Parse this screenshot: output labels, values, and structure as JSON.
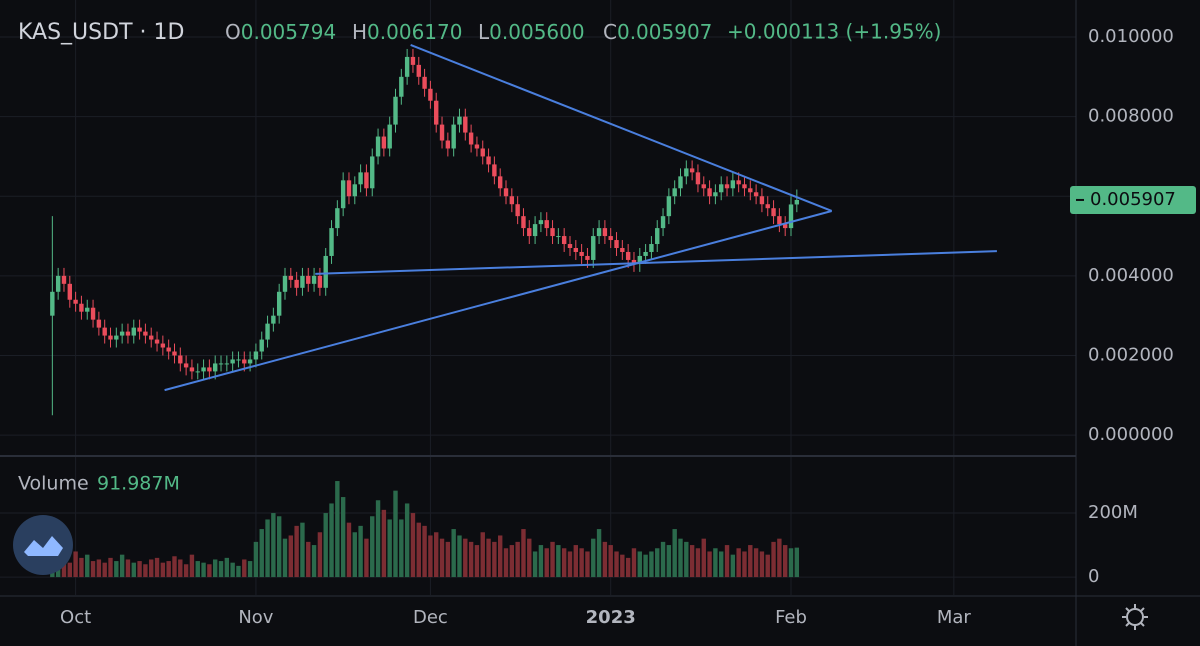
{
  "chart_data": {
    "type": "candlestick",
    "title": "KAS_USDT · 1D",
    "ohlc_header": [
      {
        "key": "O",
        "value": "0.005794"
      },
      {
        "key": "H",
        "value": "0.006170"
      },
      {
        "key": "L",
        "value": "0.005600"
      },
      {
        "key": "C",
        "value": "0.005907"
      }
    ],
    "change": "+0.000113 (+1.95%)",
    "last_price_label": "0.005907",
    "up_color": "#53b987",
    "down_color": "#eb4d5c",
    "trendline_color": "#4a7fde",
    "xlim": [
      -9,
      176
    ],
    "xticks": [
      {
        "value": 4,
        "label": "Oct"
      },
      {
        "value": 35,
        "label": "Nov"
      },
      {
        "value": 65,
        "label": "Dec"
      },
      {
        "value": 96,
        "label": "2023"
      },
      {
        "value": 127,
        "label": "Feb"
      },
      {
        "value": 155,
        "label": "Mar"
      }
    ],
    "ylim": [
      -0.0005,
      0.01093
    ],
    "yticks": [
      {
        "value": 0,
        "label": "0.000000"
      },
      {
        "value": 0.002,
        "label": "0.002000"
      },
      {
        "value": 0.004,
        "label": "0.004000"
      },
      {
        "value": 0.006,
        "label": "0.006000"
      },
      {
        "value": 0.008,
        "label": "0.008000"
      },
      {
        "value": 0.01,
        "label": "0.010000"
      }
    ],
    "grid": true,
    "open": [
      0.003,
      0.0036,
      0.004,
      0.0038,
      0.0034,
      0.0033,
      0.0031,
      0.0032,
      0.0029,
      0.0027,
      0.0025,
      0.0024,
      0.0025,
      0.0026,
      0.0025,
      0.0027,
      0.0026,
      0.0025,
      0.0024,
      0.0023,
      0.0022,
      0.0021,
      0.002,
      0.0018,
      0.0017,
      0.0016,
      0.0016,
      0.0017,
      0.0016,
      0.0018,
      0.0018,
      0.0018,
      0.0019,
      0.0019,
      0.0018,
      0.0019,
      0.0021,
      0.0024,
      0.0028,
      0.003,
      0.0036,
      0.004,
      0.0039,
      0.0037,
      0.004,
      0.0038,
      0.004,
      0.0037,
      0.0045,
      0.0052,
      0.0057,
      0.0064,
      0.006,
      0.0063,
      0.0066,
      0.0062,
      0.007,
      0.0075,
      0.0072,
      0.0078,
      0.0085,
      0.009,
      0.0095,
      0.0093,
      0.009,
      0.0087,
      0.0084,
      0.0078,
      0.0074,
      0.0072,
      0.0078,
      0.008,
      0.0076,
      0.0073,
      0.0072,
      0.007,
      0.0068,
      0.0065,
      0.0062,
      0.006,
      0.0058,
      0.0055,
      0.0052,
      0.005,
      0.0053,
      0.0054,
      0.0052,
      0.005,
      0.005,
      0.0048,
      0.0047,
      0.0046,
      0.0045,
      0.0044,
      0.005,
      0.0052,
      0.005,
      0.0049,
      0.0047,
      0.0046,
      0.0044,
      0.0043,
      0.0045,
      0.0046,
      0.0048,
      0.0052,
      0.0055,
      0.006,
      0.0062,
      0.0065,
      0.0067,
      0.0066,
      0.0063,
      0.0062,
      0.006,
      0.0061,
      0.0063,
      0.0062,
      0.0064,
      0.0063,
      0.0062,
      0.0061,
      0.006,
      0.0058,
      0.0057,
      0.0055,
      0.0053,
      0.0052,
      0.005794
    ],
    "high": [
      0.0055,
      0.0042,
      0.0042,
      0.004,
      0.0036,
      0.0035,
      0.0034,
      0.0034,
      0.0031,
      0.0029,
      0.0027,
      0.0027,
      0.0028,
      0.0028,
      0.0029,
      0.0029,
      0.0028,
      0.0027,
      0.0026,
      0.0025,
      0.0024,
      0.0023,
      0.0022,
      0.002,
      0.0019,
      0.0018,
      0.0019,
      0.0019,
      0.002,
      0.002,
      0.002,
      0.0021,
      0.0021,
      0.0021,
      0.0021,
      0.0023,
      0.0026,
      0.003,
      0.0032,
      0.0038,
      0.0042,
      0.0042,
      0.0041,
      0.0042,
      0.0042,
      0.0042,
      0.0042,
      0.0047,
      0.0054,
      0.0059,
      0.0066,
      0.0066,
      0.0065,
      0.0068,
      0.0068,
      0.0072,
      0.0077,
      0.0077,
      0.008,
      0.0087,
      0.0092,
      0.0097,
      0.0097,
      0.0095,
      0.0092,
      0.0089,
      0.0086,
      0.008,
      0.0076,
      0.008,
      0.0082,
      0.0082,
      0.0078,
      0.0075,
      0.0074,
      0.0072,
      0.007,
      0.0067,
      0.0064,
      0.0062,
      0.006,
      0.0057,
      0.0054,
      0.0055,
      0.0056,
      0.0056,
      0.0054,
      0.0052,
      0.0052,
      0.005,
      0.0049,
      0.0048,
      0.0047,
      0.0052,
      0.0054,
      0.0054,
      0.0052,
      0.0051,
      0.0049,
      0.0048,
      0.0046,
      0.0047,
      0.0048,
      0.005,
      0.0054,
      0.0057,
      0.0062,
      0.0064,
      0.0067,
      0.0069,
      0.0069,
      0.0068,
      0.0065,
      0.0064,
      0.0063,
      0.0065,
      0.0065,
      0.0066,
      0.0066,
      0.0065,
      0.0064,
      0.0063,
      0.0062,
      0.006,
      0.0059,
      0.0057,
      0.0055,
      0.006,
      0.00617
    ],
    "low": [
      0.0005,
      0.0034,
      0.0036,
      0.0032,
      0.0031,
      0.0029,
      0.0029,
      0.0027,
      0.0025,
      0.0023,
      0.0022,
      0.0022,
      0.0023,
      0.0023,
      0.0023,
      0.0024,
      0.0023,
      0.0022,
      0.0021,
      0.002,
      0.0019,
      0.0018,
      0.0016,
      0.0015,
      0.0014,
      0.0014,
      0.0014,
      0.0014,
      0.0014,
      0.0016,
      0.0016,
      0.0016,
      0.0017,
      0.0016,
      0.0016,
      0.0017,
      0.0019,
      0.0022,
      0.0026,
      0.0028,
      0.0034,
      0.0037,
      0.0035,
      0.0035,
      0.0036,
      0.0036,
      0.0035,
      0.0035,
      0.0043,
      0.005,
      0.0055,
      0.0058,
      0.0058,
      0.0061,
      0.006,
      0.006,
      0.0068,
      0.007,
      0.007,
      0.0076,
      0.0083,
      0.0088,
      0.0091,
      0.0088,
      0.0085,
      0.0082,
      0.0076,
      0.0072,
      0.007,
      0.007,
      0.0076,
      0.0074,
      0.0071,
      0.007,
      0.0068,
      0.0066,
      0.0063,
      0.006,
      0.0058,
      0.0056,
      0.0053,
      0.005,
      0.0048,
      0.0048,
      0.0051,
      0.005,
      0.0048,
      0.0048,
      0.0046,
      0.0045,
      0.0044,
      0.0043,
      0.0042,
      0.0042,
      0.0048,
      0.0048,
      0.0047,
      0.0045,
      0.0044,
      0.0042,
      0.0041,
      0.0041,
      0.0043,
      0.0044,
      0.0046,
      0.005,
      0.0053,
      0.0058,
      0.006,
      0.0063,
      0.0064,
      0.0061,
      0.006,
      0.0058,
      0.0058,
      0.0059,
      0.006,
      0.006,
      0.0061,
      0.006,
      0.0059,
      0.0058,
      0.0056,
      0.0055,
      0.0053,
      0.0051,
      0.005,
      0.005,
      0.0056
    ],
    "close": [
      0.0036,
      0.004,
      0.0038,
      0.0034,
      0.0033,
      0.0031,
      0.0032,
      0.0029,
      0.0027,
      0.0025,
      0.0024,
      0.0025,
      0.0026,
      0.0025,
      0.0027,
      0.0026,
      0.0025,
      0.0024,
      0.0023,
      0.0022,
      0.0021,
      0.002,
      0.0018,
      0.0017,
      0.0016,
      0.0016,
      0.0017,
      0.0016,
      0.0018,
      0.0018,
      0.0018,
      0.0019,
      0.0019,
      0.0018,
      0.0019,
      0.0021,
      0.0024,
      0.0028,
      0.003,
      0.0036,
      0.004,
      0.0039,
      0.0037,
      0.004,
      0.0038,
      0.004,
      0.0037,
      0.0045,
      0.0052,
      0.0057,
      0.0064,
      0.006,
      0.0063,
      0.0066,
      0.0062,
      0.007,
      0.0075,
      0.0072,
      0.0078,
      0.0085,
      0.009,
      0.0095,
      0.0093,
      0.009,
      0.0087,
      0.0084,
      0.0078,
      0.0074,
      0.0072,
      0.0078,
      0.008,
      0.0076,
      0.0073,
      0.0072,
      0.007,
      0.0068,
      0.0065,
      0.0062,
      0.006,
      0.0058,
      0.0055,
      0.0052,
      0.005,
      0.0053,
      0.0054,
      0.0052,
      0.005,
      0.005,
      0.0048,
      0.0047,
      0.0046,
      0.0045,
      0.0044,
      0.005,
      0.0052,
      0.005,
      0.0049,
      0.0047,
      0.0046,
      0.0044,
      0.0043,
      0.0045,
      0.0046,
      0.0048,
      0.0052,
      0.0055,
      0.006,
      0.0062,
      0.0065,
      0.0067,
      0.0066,
      0.0063,
      0.0062,
      0.006,
      0.0061,
      0.0063,
      0.0062,
      0.0064,
      0.0063,
      0.0062,
      0.0061,
      0.006,
      0.0058,
      0.0057,
      0.0055,
      0.0053,
      0.0052,
      0.005794,
      0.005907
    ],
    "trendlines": [
      {
        "x": [
          61.6,
          134
        ],
        "y": [
          0.0098,
          0.00563
        ]
      },
      {
        "x": [
          19.3,
          134
        ],
        "y": [
          0.00113,
          0.00563
        ]
      },
      {
        "x": [
          45.2,
          162.4
        ],
        "y": [
          0.00405,
          0.00462
        ]
      }
    ],
    "volume": {
      "name": "Volume",
      "header_value": 91.987,
      "header_value_label": "91.987M",
      "ylim": [
        -56,
        372
      ],
      "yticks": [
        0,
        {
          "value": 200,
          "label": "200M"
        }
      ],
      "up_color": "#2b6a4c",
      "down_color": "#7c2d33",
      "values": [
        40,
        60,
        50,
        45,
        80,
        60,
        70,
        50,
        55,
        45,
        60,
        50,
        70,
        55,
        45,
        50,
        40,
        55,
        60,
        45,
        50,
        65,
        55,
        40,
        70,
        50,
        45,
        40,
        55,
        50,
        60,
        45,
        35,
        55,
        50,
        110,
        150,
        180,
        200,
        190,
        120,
        130,
        160,
        170,
        110,
        100,
        140,
        200,
        230,
        300,
        250,
        170,
        140,
        160,
        120,
        190,
        240,
        210,
        180,
        270,
        180,
        230,
        200,
        170,
        160,
        130,
        140,
        120,
        110,
        150,
        130,
        120,
        110,
        100,
        140,
        120,
        110,
        130,
        90,
        100,
        110,
        150,
        120,
        80,
        100,
        90,
        110,
        100,
        90,
        80,
        100,
        90,
        80,
        120,
        150,
        110,
        100,
        80,
        70,
        60,
        90,
        80,
        70,
        80,
        90,
        110,
        100,
        150,
        120,
        110,
        100,
        90,
        120,
        80,
        90,
        80,
        100,
        70,
        90,
        80,
        100,
        90,
        80,
        70,
        110,
        120,
        100,
        90,
        91.987
      ]
    }
  }
}
